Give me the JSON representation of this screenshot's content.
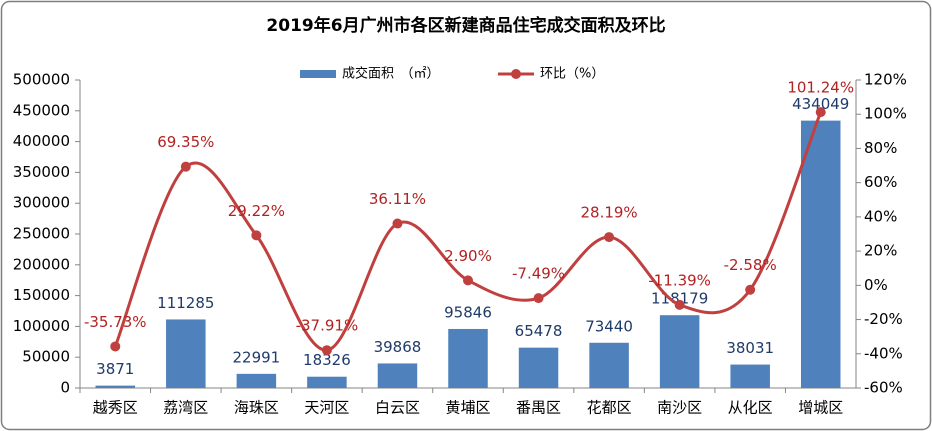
{
  "chart_data": {
    "type": "bar",
    "title": "2019年6月广州市各区新建商品住宅成交面积及环比",
    "categories": [
      "越秀区",
      "荔湾区",
      "海珠区",
      "天河区",
      "白云区",
      "黄埔区",
      "番禺区",
      "花都区",
      "南沙区",
      "从化区",
      "增城区"
    ],
    "series": [
      {
        "name": "成交面积　（㎡）",
        "type": "bar",
        "color": "#4f81bd",
        "label_color": "#1f3b6a",
        "values": [
          3871,
          111285,
          22991,
          18326,
          39868,
          95846,
          65478,
          73440,
          118179,
          38031,
          434049
        ]
      },
      {
        "name": "环比（%）",
        "type": "line",
        "axis": "y2",
        "color": "#c0403f",
        "label_color": "#b22222",
        "smooth": true,
        "values": [
          -35.73,
          69.35,
          29.22,
          -37.91,
          36.11,
          2.9,
          -7.49,
          28.19,
          -11.39,
          -2.58,
          101.24
        ],
        "value_labels": [
          "-35.73%",
          "69.35%",
          "29.22%",
          "-37.91%",
          "36.11%",
          "2.90%",
          "-7.49%",
          "28.19%",
          "-11.39%",
          "-2.58%",
          "101.24%"
        ]
      }
    ],
    "ylim": [
      0,
      500000
    ],
    "yticks": [
      0,
      50000,
      100000,
      150000,
      200000,
      250000,
      300000,
      350000,
      400000,
      450000,
      500000
    ],
    "y2lim": [
      -60,
      120
    ],
    "y2ticks": [
      {
        "value": -60,
        "label": "-60%"
      },
      {
        "value": -40,
        "label": "-40%"
      },
      {
        "value": -20,
        "label": "-20%"
      },
      {
        "value": 0,
        "label": "0%"
      },
      {
        "value": 20,
        "label": "20%"
      },
      {
        "value": 40,
        "label": "40%"
      },
      {
        "value": 60,
        "label": "60%"
      },
      {
        "value": 80,
        "label": "80%"
      },
      {
        "value": 100,
        "label": "100%"
      },
      {
        "value": 120,
        "label": "120%"
      }
    ],
    "grid": false
  }
}
